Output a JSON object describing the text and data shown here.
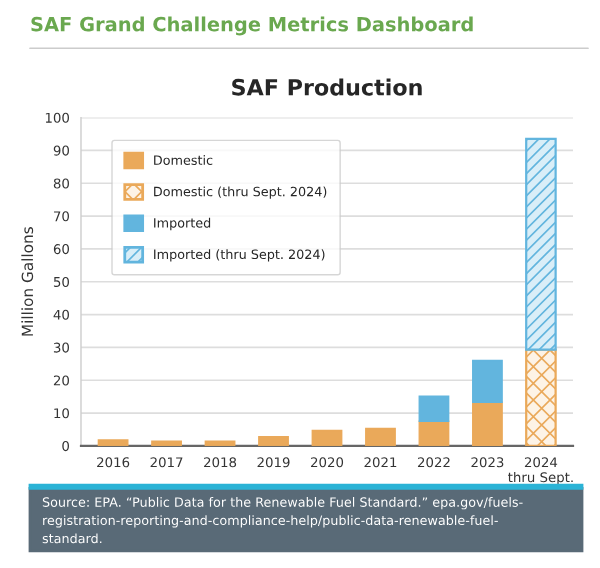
{
  "chart_data": {
    "type": "bar",
    "title": "SAF Production",
    "subtitle": "SAF Grand Challenge Metrics Dashboard",
    "ylabel": "Million Gallons",
    "categories": [
      "2016",
      "2017",
      "2018",
      "2019",
      "2020",
      "2021",
      "2022",
      "2023",
      "2024\nthru Sept."
    ],
    "stacked": true,
    "series": [
      {
        "name": "Domestic",
        "color": "#eaa95a",
        "values": [
          1.8,
          1.4,
          1.4,
          2.8,
          4.7,
          5.3,
          7.5,
          13.3,
          null
        ]
      },
      {
        "name": "Domestic (thru Sept. 2024)",
        "color": "#eaa95a",
        "values": [
          null,
          null,
          null,
          null,
          null,
          null,
          null,
          null,
          29.3
        ]
      },
      {
        "name": "Imported",
        "color": "#62b5de",
        "values": [
          null,
          null,
          null,
          null,
          null,
          null,
          7.6,
          12.7,
          null
        ]
      },
      {
        "name": "Imported (thru Sept. 2024)",
        "color": "#62b5de",
        "values": [
          null,
          null,
          null,
          null,
          null,
          null,
          null,
          null,
          64.2
        ]
      }
    ],
    "ylim": [
      0,
      100
    ],
    "yticks": [
      0,
      10,
      20,
      30,
      40,
      50,
      60,
      70,
      80,
      90,
      100
    ],
    "grid": "y",
    "legend": "top left",
    "annotations": [
      "Source: EPA. “Public Data for the Renewable Fuel Standard.” epa.gov/fuels-registration-reporting-and-compliance-help/public-data-renewable-fuel-standard."
    ]
  }
}
